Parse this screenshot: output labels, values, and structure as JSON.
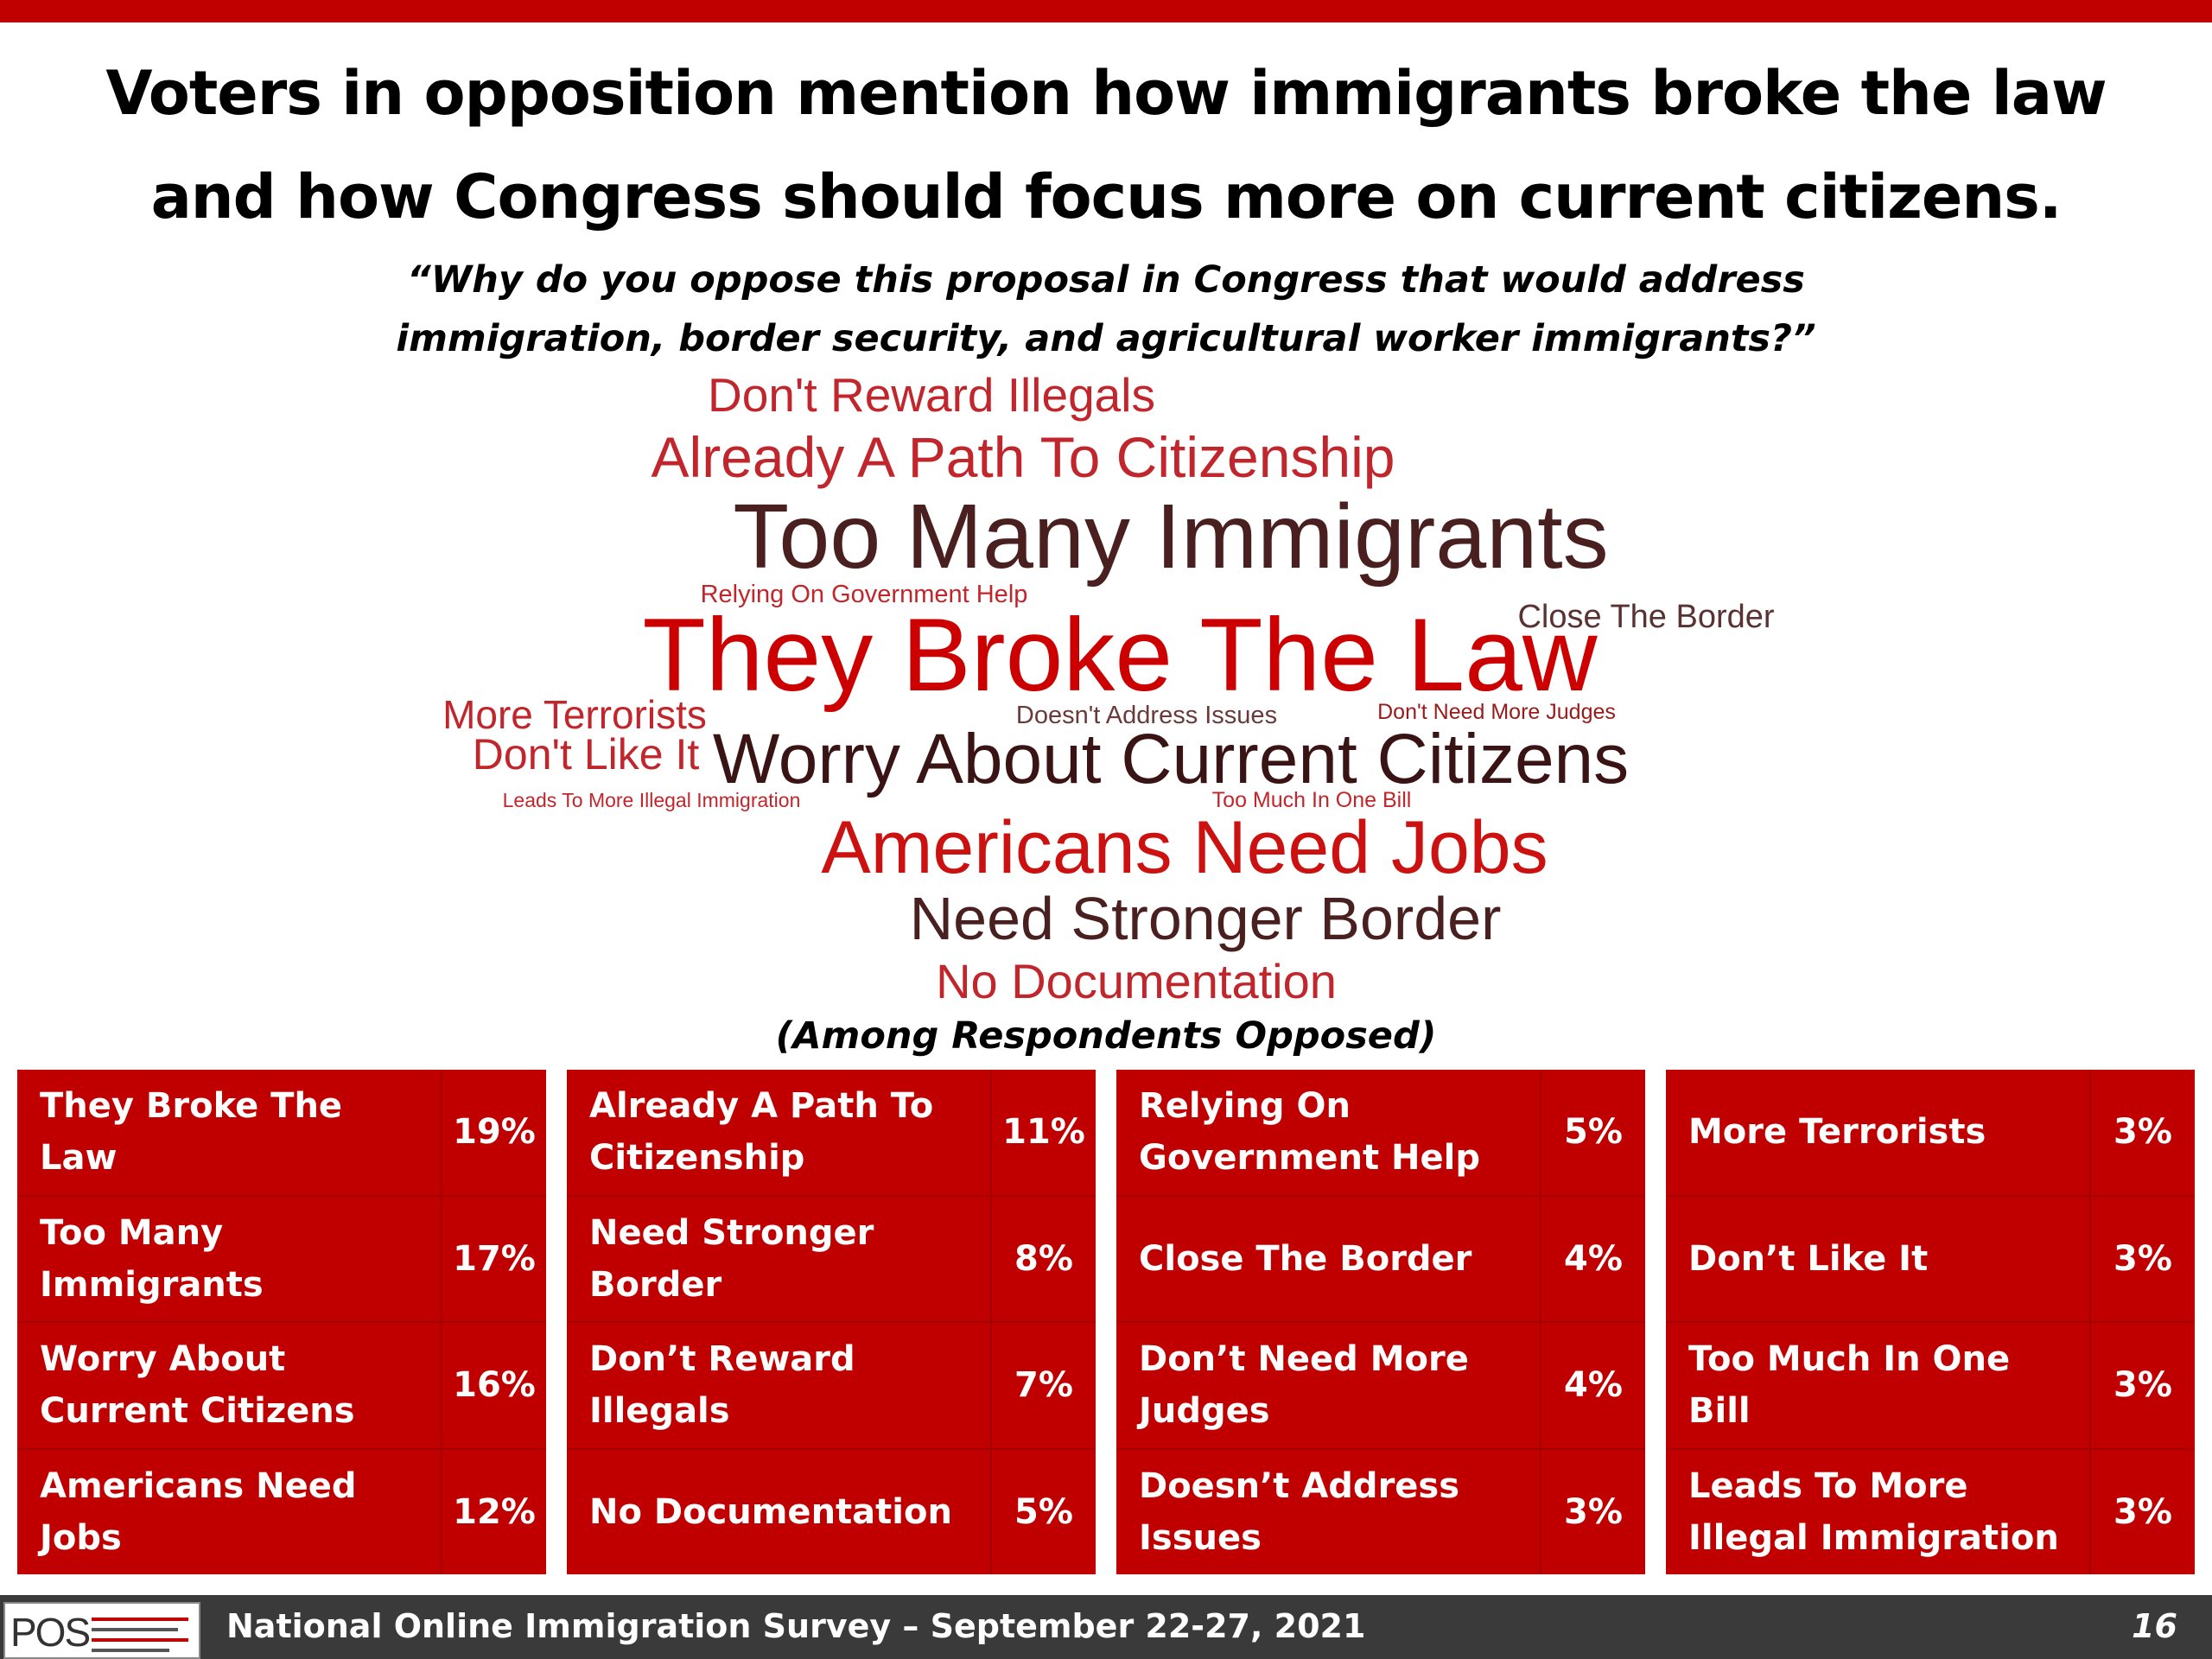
{
  "title": {
    "line1": "Voters in opposition mention how immigrants broke the law",
    "line2": "and how Congress should focus more on current citizens."
  },
  "question": {
    "line1": "“Why do you oppose this proposal in Congress that would address",
    "line2": "immigration, border security, and agricultural worker immigrants?”"
  },
  "word_cloud": [
    {
      "text": "Don't Reward Illegals",
      "color": "#c0262b"
    },
    {
      "text": "Already A Path To Citizenship",
      "color": "#c0262b"
    },
    {
      "text": "Too Many Immigrants",
      "color": "#4a1f1f"
    },
    {
      "text": "Relying On Government Help",
      "color": "#c0262b"
    },
    {
      "text": "Close The Border",
      "color": "#5a3232"
    },
    {
      "text": "They Broke The Law",
      "color": "#cc0000"
    },
    {
      "text": "More Terrorists",
      "color": "#c0262b"
    },
    {
      "text": "Doesn't Address Issues",
      "color": "#6a3a3a"
    },
    {
      "text": "Don't Need More Judges",
      "color": "#9a1a1a"
    },
    {
      "text": "Don't Like It",
      "color": "#c0262b"
    },
    {
      "text": "Worry About Current Citizens",
      "color": "#3a1414"
    },
    {
      "text": "Leads To More Illegal Immigration",
      "color": "#c0262b"
    },
    {
      "text": "Too Much In One Bill",
      "color": "#c0262b"
    },
    {
      "text": "Americans Need Jobs",
      "color": "#cc1111"
    },
    {
      "text": "Need Stronger Border",
      "color": "#4a1f1f"
    },
    {
      "text": "No Documentation",
      "color": "#c0262b"
    }
  ],
  "among": "(Among Respondents Opposed)",
  "tables": [
    {
      "rows": [
        {
          "label": "They Broke The Law",
          "pct": "19%"
        },
        {
          "label": "Too Many Immigrants",
          "pct": "17%"
        },
        {
          "label": "Worry About Current Citizens",
          "pct": "16%"
        },
        {
          "label": "Americans Need Jobs",
          "pct": "12%"
        }
      ]
    },
    {
      "rows": [
        {
          "label": "Already A Path To Citizenship",
          "pct": "11%"
        },
        {
          "label": "Need Stronger Border",
          "pct": "8%"
        },
        {
          "label": "Don’t Reward Illegals",
          "pct": "7%"
        },
        {
          "label": "No Documentation",
          "pct": "5%"
        }
      ]
    },
    {
      "rows": [
        {
          "label": "Relying On Government Help",
          "pct": "5%"
        },
        {
          "label": "Close The Border",
          "pct": "4%"
        },
        {
          "label": "Don’t Need More Judges",
          "pct": "4%"
        },
        {
          "label": "Doesn’t Address Issues",
          "pct": "3%"
        }
      ]
    },
    {
      "rows": [
        {
          "label": "More Terrorists",
          "pct": "3%"
        },
        {
          "label": "Don’t Like It",
          "pct": "3%"
        },
        {
          "label": "Too Much In One Bill",
          "pct": "3%"
        },
        {
          "label": "Leads To More Illegal Immigration",
          "pct": "3%"
        }
      ]
    }
  ],
  "footer": {
    "logo_text": "POS",
    "text": "National Online Immigration Survey – September 22-27, 2021",
    "page": "16"
  }
}
